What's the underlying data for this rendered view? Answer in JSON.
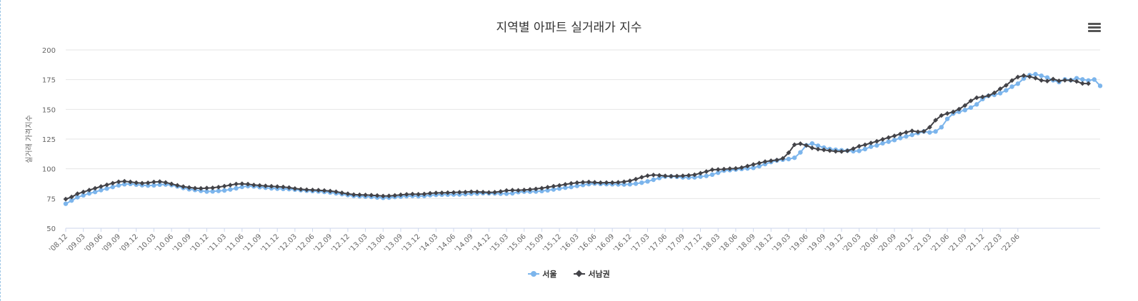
{
  "chart_data": {
    "type": "line",
    "title": "지역별 아파트 실거래가 지수",
    "ylabel": "실거래 가격지수",
    "ylim": [
      50,
      200
    ],
    "yticks": [
      50,
      75,
      100,
      125,
      150,
      175,
      200
    ],
    "xtick_labels": [
      "'08.12",
      "'09.03",
      "'09.06",
      "'09.09",
      "'09.12",
      "'10.03",
      "'10.06",
      "'10.09",
      "'10.12",
      "'11.03",
      "'11.06",
      "'11.09",
      "'11.12",
      "'12.03",
      "'12.06",
      "'12.09",
      "'12.12",
      "'13.03",
      "'13.06",
      "'13.09",
      "'13.12",
      "'14.03",
      "'14.06",
      "'14.09",
      "'14.12",
      "'15.03",
      "'15.06",
      "'15.09",
      "'15.12",
      "'16.03",
      "'16.06",
      "'16.09",
      "'16.12",
      "'17.03",
      "'17.06",
      "'17.09",
      "'17.12",
      "'18.03",
      "'18.06",
      "'18.09",
      "'18.12",
      "'19.03",
      "'19.06",
      "'19.09",
      "'19.12",
      "'20.03",
      "'20.06",
      "'20.09",
      "'20.12",
      "'21.03",
      "'21.06",
      "'21.09",
      "'21.12",
      "'22.03",
      "'22.06"
    ],
    "months_per_tick": 3,
    "series": [
      {
        "name": "서울",
        "color": "#7cb5ec",
        "marker": "circle",
        "values": [
          70.6,
          73.3,
          76.1,
          77.7,
          79.3,
          80.5,
          82.1,
          83.4,
          84.7,
          86.1,
          87.0,
          87.3,
          86.7,
          86.2,
          85.9,
          86.1,
          86.7,
          86.8,
          86.3,
          85.2,
          83.9,
          82.8,
          82.2,
          81.5,
          80.9,
          81.0,
          81.4,
          81.8,
          82.6,
          83.6,
          84.8,
          85.4,
          85.2,
          84.6,
          84.1,
          83.6,
          83.3,
          83.1,
          82.9,
          82.5,
          82.0,
          81.6,
          81.3,
          81.0,
          80.6,
          80.1,
          79.4,
          78.7,
          77.9,
          77.2,
          76.9,
          76.6,
          76.4,
          75.9,
          75.6,
          75.8,
          76.3,
          76.6,
          77.0,
          77.2,
          77.0,
          77.2,
          77.8,
          78.1,
          78.3,
          78.3,
          78.4,
          78.4,
          78.7,
          79.1,
          79.2,
          79.5,
          79.4,
          79.3,
          79.1,
          79.1,
          79.4,
          80.4,
          80.8,
          80.8,
          80.9,
          81.3,
          81.9,
          82.6,
          83.4,
          84.1,
          84.7,
          85.6,
          86.4,
          87.1,
          87.6,
          87.3,
          87.1,
          87.0,
          86.9,
          86.8,
          87.0,
          87.5,
          88.3,
          89.4,
          90.8,
          92.3,
          93.5,
          93.6,
          93.3,
          92.8,
          92.7,
          92.8,
          93.4,
          94.0,
          95.1,
          96.7,
          98.5,
          98.9,
          99.4,
          99.9,
          100.3,
          100.8,
          102.2,
          104.0,
          105.7,
          107.0,
          107.7,
          108.2,
          109.3,
          113.8,
          119.8,
          121.3,
          119.4,
          117.8,
          116.6,
          116.0,
          115.6,
          115.3,
          114.8,
          115.1,
          116.6,
          118.6,
          119.7,
          121.5,
          122.8,
          124.2,
          125.9,
          127.3,
          128.5,
          130.1,
          131.4,
          130.6,
          131.4,
          135.0,
          142.0,
          146.5,
          148.0,
          149.4,
          151.5,
          154.2,
          158.7,
          161.4,
          162.2,
          163.6,
          166.0,
          169.1,
          171.6,
          175.9,
          178.8,
          179.6,
          178.3,
          176.8,
          174.5,
          173.0,
          175.2,
          174.6,
          176.2,
          175.2,
          174.3,
          175.1,
          169.8
        ]
      },
      {
        "name": "서남권",
        "color": "#434348",
        "marker": "diamond",
        "values": [
          74.5,
          76.3,
          79.0,
          80.5,
          82.1,
          83.6,
          85.1,
          86.5,
          87.9,
          89.1,
          89.5,
          89.0,
          88.3,
          87.9,
          88.2,
          88.9,
          89.2,
          88.5,
          87.3,
          86.1,
          85.0,
          84.3,
          83.7,
          83.5,
          83.8,
          84.0,
          84.6,
          85.4,
          86.3,
          87.2,
          87.4,
          87.1,
          86.4,
          86.0,
          85.6,
          85.3,
          85.0,
          84.7,
          84.2,
          83.4,
          82.8,
          82.4,
          82.2,
          82.0,
          81.7,
          81.3,
          80.7,
          79.8,
          79.0,
          78.3,
          78.1,
          78.0,
          77.8,
          77.5,
          77.1,
          77.2,
          77.6,
          78.1,
          78.5,
          78.7,
          78.6,
          78.8,
          79.4,
          79.7,
          79.8,
          79.9,
          80.1,
          80.3,
          80.4,
          80.7,
          80.6,
          80.4,
          80.1,
          80.3,
          80.9,
          81.7,
          82.0,
          81.9,
          82.2,
          82.6,
          83.1,
          83.7,
          84.5,
          85.3,
          86.0,
          86.9,
          87.7,
          88.3,
          88.7,
          88.9,
          88.6,
          88.3,
          88.4,
          88.4,
          88.6,
          89.1,
          89.9,
          91.3,
          92.9,
          94.2,
          94.8,
          94.5,
          94.0,
          93.8,
          93.9,
          94.1,
          94.5,
          95.0,
          96.3,
          97.7,
          99.2,
          99.4,
          99.7,
          100.1,
          100.3,
          101.0,
          102.3,
          103.6,
          104.8,
          106.0,
          106.8,
          107.4,
          108.7,
          113.5,
          120.3,
          121.1,
          119.7,
          117.6,
          116.5,
          115.9,
          115.3,
          114.7,
          114.6,
          115.2,
          116.9,
          119.0,
          120.2,
          121.7,
          123.1,
          124.8,
          126.3,
          127.7,
          129.3,
          130.7,
          131.9,
          131.1,
          131.5,
          135.0,
          140.9,
          144.9,
          146.5,
          147.9,
          150.2,
          153.3,
          157.2,
          159.8,
          160.5,
          161.5,
          163.9,
          167.3,
          170.2,
          174.3,
          177.2,
          178.4,
          177.5,
          176.3,
          174.4,
          173.8,
          175.5,
          174.0,
          174.5,
          174.5,
          173.5,
          171.8,
          171.7
        ]
      }
    ],
    "legend": [
      "서울",
      "서남권"
    ]
  },
  "menu_icon": "hamburger-menu-icon"
}
